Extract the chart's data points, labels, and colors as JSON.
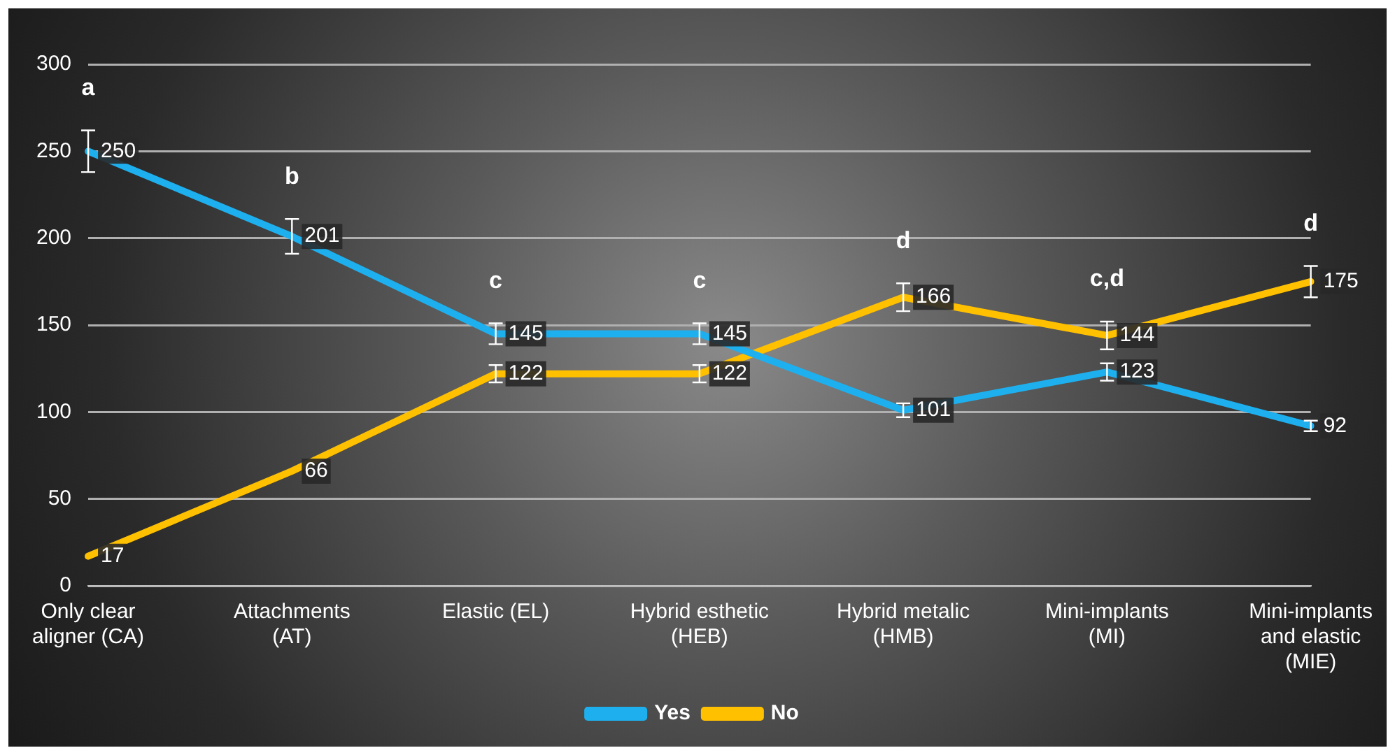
{
  "chart_data": {
    "type": "line",
    "categories": [
      "Only clear aligner (CA)",
      "Attachments (AT)",
      "Elastic (EL)",
      "Hybrid esthetic (HEB)",
      "Hybrid metalic (HMB)",
      "Mini-implants (MI)",
      "Mini-implants and elastic (MIE)"
    ],
    "series": [
      {
        "name": "Yes",
        "color": "#1eb0ee",
        "values": [
          250,
          201,
          145,
          145,
          101,
          123,
          92
        ],
        "errors": [
          12,
          10,
          6,
          6,
          4,
          5,
          3
        ]
      },
      {
        "name": "No",
        "color": "#ffc000",
        "values": [
          17,
          66,
          122,
          122,
          166,
          144,
          175
        ],
        "errors": [
          null,
          null,
          5,
          5,
          8,
          8,
          9
        ]
      }
    ],
    "ylim": [
      0,
      300
    ],
    "yticks": [
      0,
      50,
      100,
      150,
      200,
      250,
      300
    ],
    "grid": "y",
    "legend": "bottom",
    "data_labels": true,
    "line_style": "solid",
    "annotations": [
      "a",
      "b",
      "c",
      "c",
      "d",
      "c,d",
      "d"
    ]
  }
}
